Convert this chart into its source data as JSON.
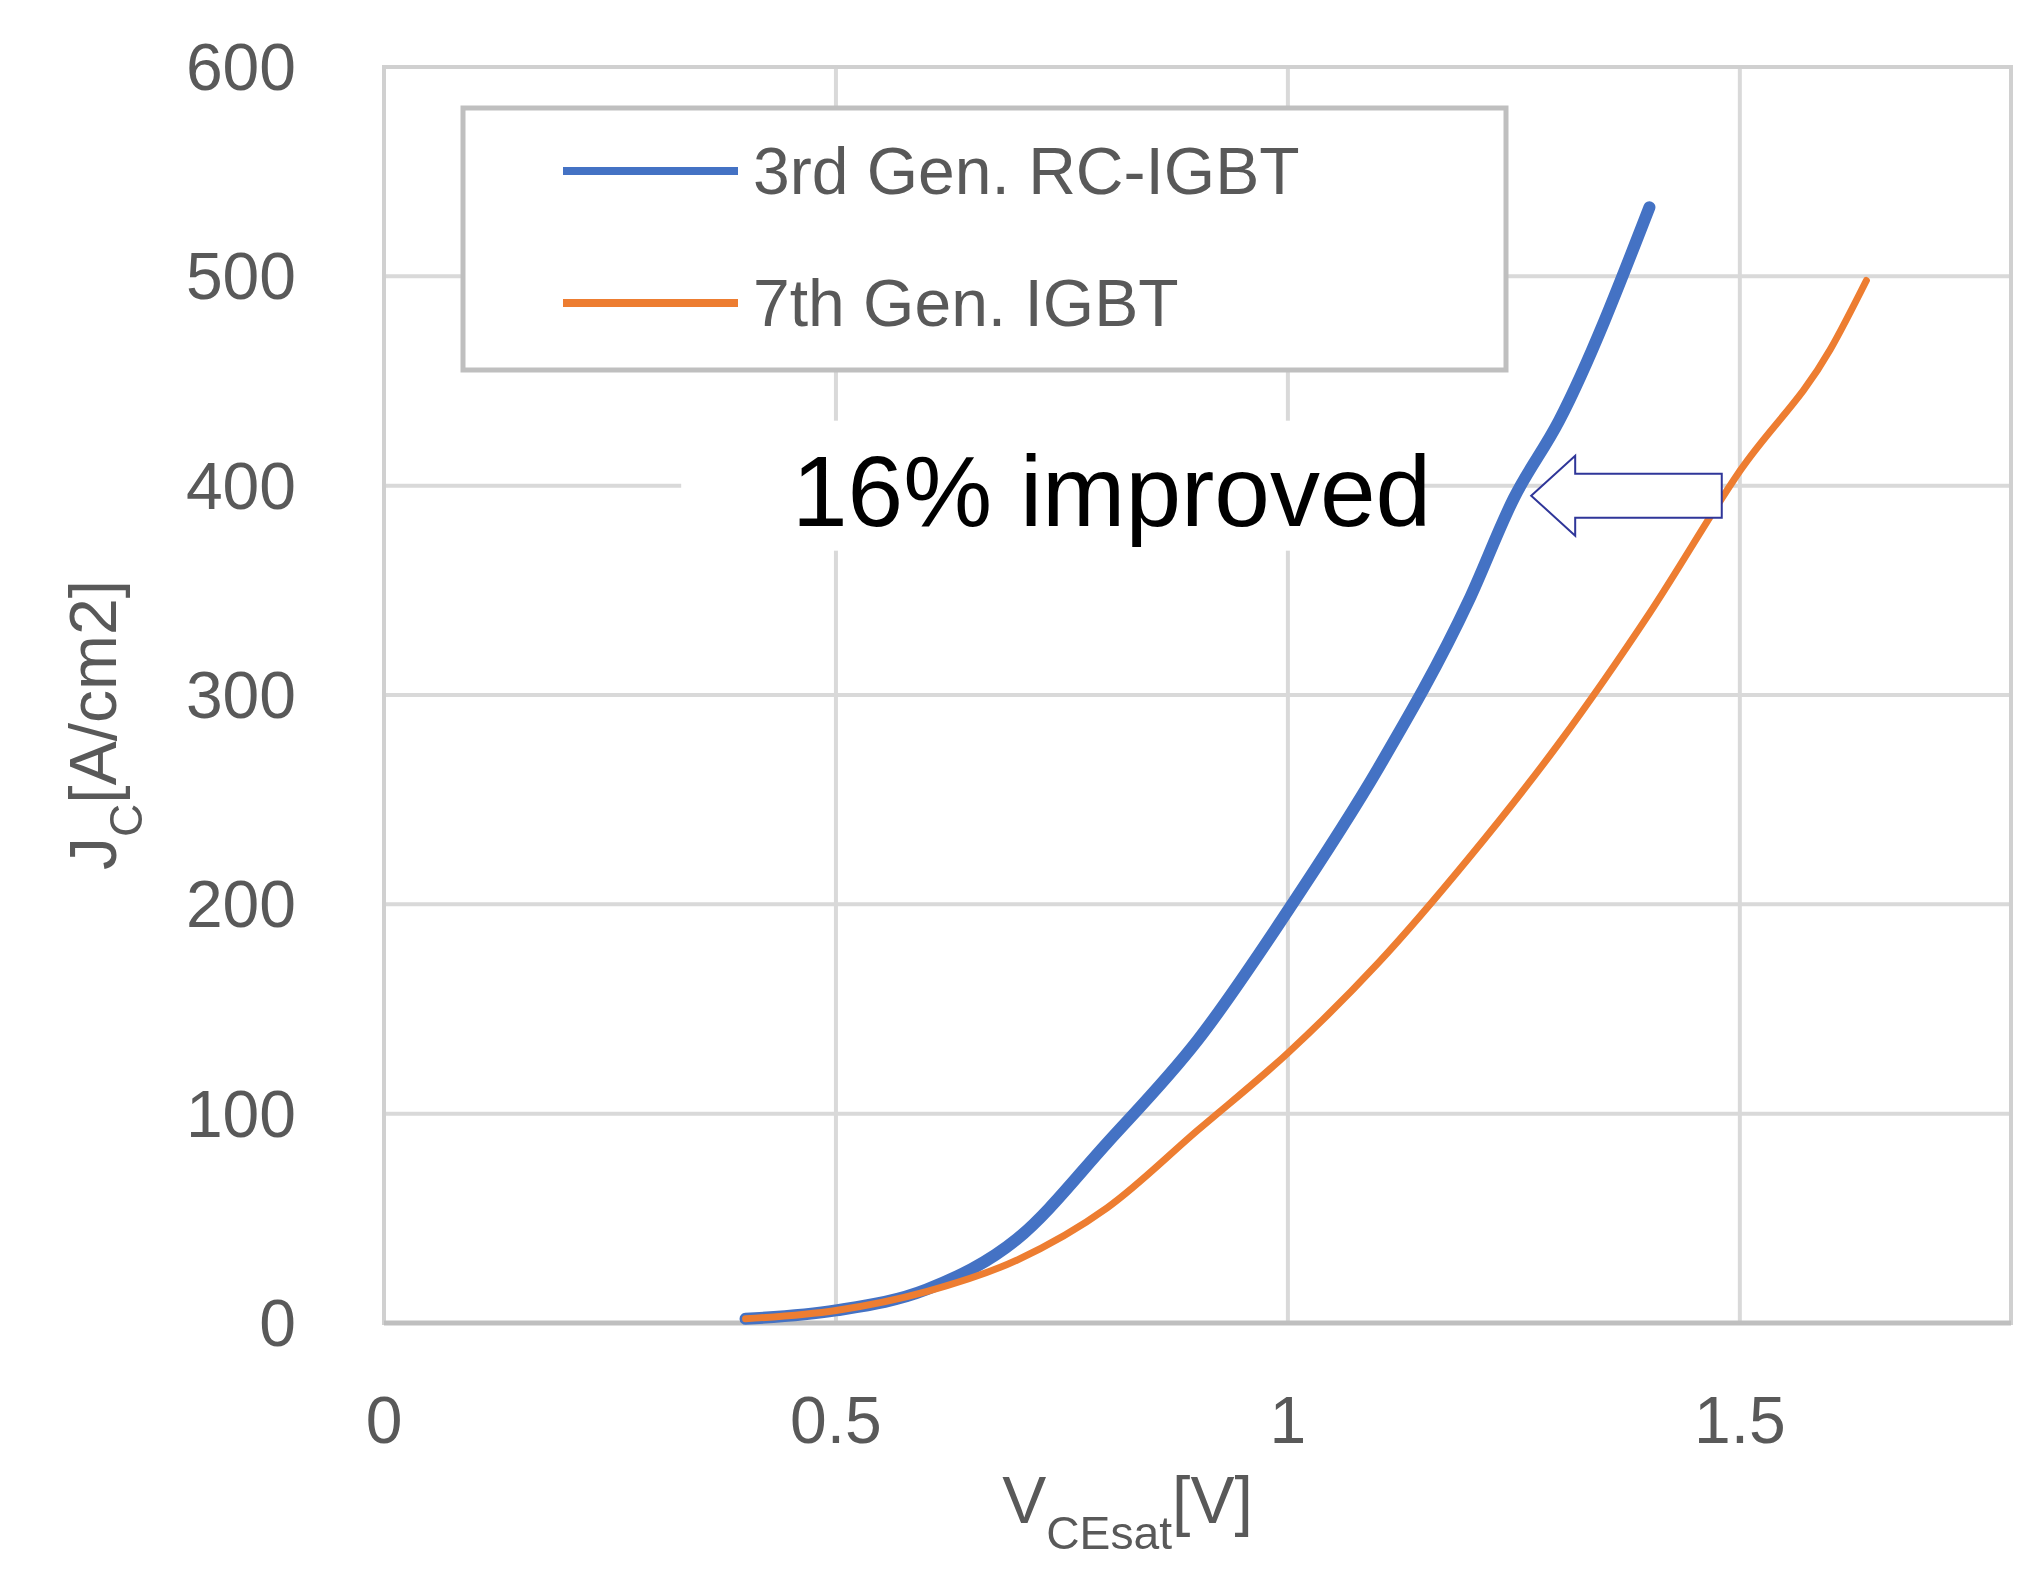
{
  "chart_data": {
    "type": "line",
    "xlabel": "V$_{CEsat}$[V]",
    "ylabel": "J$_{C}$[A/cm2]",
    "xlim": [
      0,
      1.8
    ],
    "xticks": [
      0,
      0.5,
      1,
      1.5
    ],
    "ylim": [
      0,
      600
    ],
    "yticks": [
      0,
      100,
      200,
      300,
      400,
      500,
      600
    ],
    "grid": true,
    "legend": "top left",
    "series": [
      {
        "name": "3rd Gen. RC-IGBT",
        "color": "#4472c4",
        "x": [
          0.4,
          0.5,
          0.6,
          0.7,
          0.8,
          0.9,
          1.0,
          1.1,
          1.2,
          1.25,
          1.3,
          1.4
        ],
        "values": [
          2,
          6,
          16,
          40,
          86,
          135,
          197,
          265,
          345,
          394,
          431,
          533
        ]
      },
      {
        "name": "7th Gen. IGBT",
        "color": "#ed7d31",
        "x": [
          0.4,
          0.5,
          0.6,
          0.7,
          0.8,
          0.9,
          1.0,
          1.1,
          1.2,
          1.3,
          1.4,
          1.5,
          1.6,
          1.64
        ],
        "values": [
          2,
          6,
          15,
          30,
          55,
          92,
          129,
          172,
          222,
          277,
          339,
          407,
          465,
          498
        ]
      }
    ],
    "annotations": [
      {
        "text": "16% improved",
        "x": 1.48,
        "y": 400
      }
    ]
  }
}
